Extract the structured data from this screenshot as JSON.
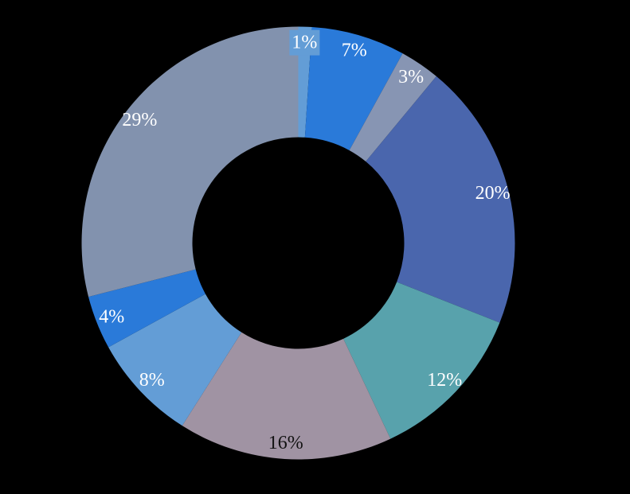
{
  "background_color": "#000000",
  "chart_data": {
    "type": "pie",
    "subtype": "doughnut",
    "title": "",
    "legend": "none",
    "direction": "clockwise",
    "start_angle_deg": 0,
    "donut_hole_ratio": 0.49,
    "data_labels": "percent",
    "slices": [
      {
        "label": "1%",
        "value": 1,
        "color": "#639DD6",
        "label_color": "#FFFFFF",
        "label_background": true
      },
      {
        "label": "7%",
        "value": 7,
        "color": "#2A7AD9",
        "label_color": "#FFFFFF",
        "label_background": false
      },
      {
        "label": "3%",
        "value": 3,
        "color": "#8795B3",
        "label_color": "#FFFFFF",
        "label_background": false
      },
      {
        "label": "20%",
        "value": 20,
        "color": "#4A66AD",
        "label_color": "#FFFFFF",
        "label_background": false
      },
      {
        "label": "12%",
        "value": 12,
        "color": "#58A2AC",
        "label_color": "#FFFFFF",
        "label_background": false
      },
      {
        "label": "16%",
        "value": 16,
        "color": "#A093A3",
        "label_color": "#121212",
        "label_background": false
      },
      {
        "label": "8%",
        "value": 8,
        "color": "#639DD6",
        "label_color": "#FFFFFF",
        "label_background": false
      },
      {
        "label": "4%",
        "value": 4,
        "color": "#2A7AD9",
        "label_color": "#FFFFFF",
        "label_background": false
      },
      {
        "label": "29%",
        "value": 29,
        "color": "#8292AE",
        "label_color": "#FFFFFF",
        "label_background": false
      }
    ]
  }
}
